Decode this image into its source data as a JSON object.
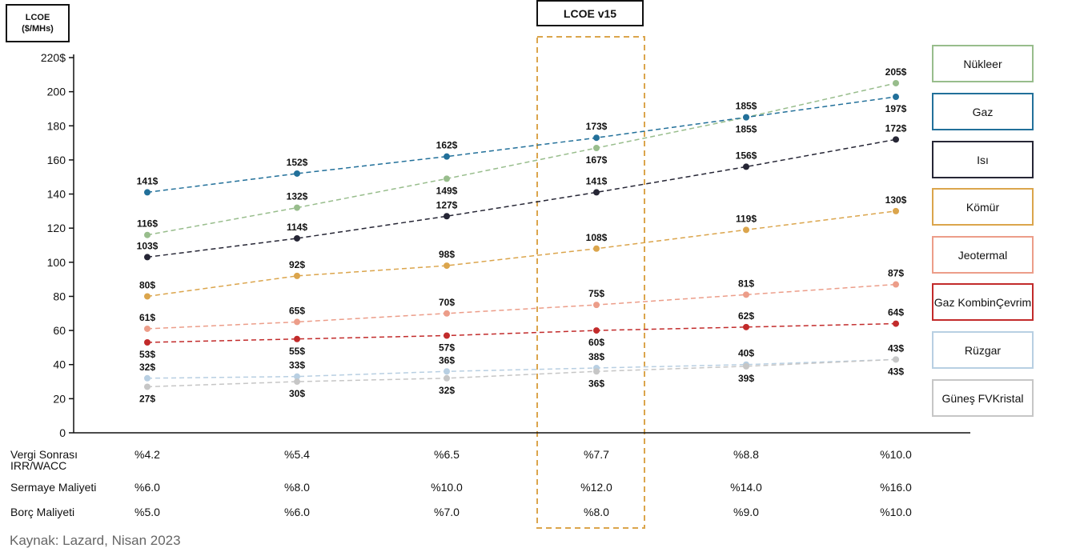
{
  "chart_data": {
    "type": "line",
    "ylabel_line1": "LCOE",
    "ylabel_line2": "($/MHs)",
    "highlight_label": "LCOE v15",
    "highlight_index": 3,
    "ylim": [
      0,
      220
    ],
    "yticks": [
      {
        "value": 0,
        "label": "0"
      },
      {
        "value": 20,
        "label": "20"
      },
      {
        "value": 40,
        "label": "40"
      },
      {
        "value": 60,
        "label": "60"
      },
      {
        "value": 80,
        "label": "80"
      },
      {
        "value": 100,
        "label": "100"
      },
      {
        "value": 120,
        "label": "120"
      },
      {
        "value": 140,
        "label": "140"
      },
      {
        "value": 160,
        "label": "160"
      },
      {
        "value": 180,
        "label": "180"
      },
      {
        "value": 200,
        "label": "200"
      },
      {
        "value": 220,
        "label": "220$"
      }
    ],
    "series": [
      {
        "name": "Nükleer",
        "color": "#98bd8c",
        "values": [
          116,
          132,
          149,
          167,
          185,
          205
        ],
        "labels": [
          "116$",
          "132$",
          "149$",
          "167$",
          "185$",
          "205$"
        ],
        "label_pos": [
          "above",
          "above",
          "below",
          "below",
          "below",
          "above"
        ]
      },
      {
        "name": "Gaz",
        "color": "#22709a",
        "values": [
          141,
          152,
          162,
          173,
          185,
          197
        ],
        "labels": [
          "141$",
          "152$",
          "162$",
          "173$",
          "185$",
          "197$"
        ],
        "label_pos": [
          "above",
          "above",
          "above",
          "above",
          "above",
          "below"
        ]
      },
      {
        "name": "Isı",
        "color": "#262635",
        "values": [
          103,
          114,
          127,
          141,
          156,
          172
        ],
        "labels": [
          "103$",
          "114$",
          "127$",
          "141$",
          "156$",
          "172$"
        ],
        "label_pos": [
          "above",
          "above",
          "above",
          "above",
          "above",
          "above"
        ]
      },
      {
        "name": "Kömür",
        "color": "#dba54c",
        "values": [
          80,
          92,
          98,
          108,
          119,
          130
        ],
        "labels": [
          "80$",
          "92$",
          "98$",
          "108$",
          "119$",
          "130$"
        ],
        "label_pos": [
          "above",
          "above",
          "above",
          "above",
          "above",
          "above"
        ]
      },
      {
        "name": "Jeotermal",
        "color": "#ec9d89",
        "values": [
          61,
          65,
          70,
          75,
          81,
          87
        ],
        "labels": [
          "61$",
          "65$",
          "70$",
          "75$",
          "81$",
          "87$"
        ],
        "label_pos": [
          "above",
          "above",
          "above",
          "above",
          "above",
          "above"
        ]
      },
      {
        "name": "Gaz Kombin Çevrim",
        "name_lines": [
          "Gaz Kombin",
          "Çevrim"
        ],
        "color": "#c22b2b",
        "values": [
          53,
          55,
          57,
          60,
          62,
          64
        ],
        "labels": [
          "53$",
          "55$",
          "57$",
          "60$",
          "62$",
          "64$"
        ],
        "label_pos": [
          "below",
          "below",
          "below",
          "below",
          "above",
          "above"
        ]
      },
      {
        "name": "Rüzgar",
        "color": "#b8cfe2",
        "values": [
          32,
          33,
          36,
          38,
          40,
          43
        ],
        "labels": [
          "32$",
          "33$",
          "36$",
          "38$",
          "40$",
          "43$"
        ],
        "label_pos": [
          "above",
          "above",
          "above",
          "above",
          "above",
          "above"
        ]
      },
      {
        "name": "Güneş FV Kristal",
        "name_lines": [
          "Güneş FV",
          "Kristal"
        ],
        "color": "#c6c6c6",
        "values": [
          27,
          30,
          32,
          36,
          39,
          43
        ],
        "labels": [
          "27$",
          "30$",
          "32$",
          "36$",
          "39$",
          "43$"
        ],
        "label_pos": [
          "below",
          "below",
          "below",
          "below",
          "below",
          "below"
        ]
      }
    ],
    "rows": [
      {
        "label_lines": [
          "Vergi Sonrası",
          "IRR/WACC"
        ],
        "values": [
          "%4.2",
          "%5.4",
          "%6.5",
          "%7.7",
          "%8.8",
          "%10.0"
        ]
      },
      {
        "label_lines": [
          "Sermaye Maliyeti"
        ],
        "values": [
          "%6.0",
          "%8.0",
          "%10.0",
          "%12.0",
          "%14.0",
          "%16.0"
        ]
      },
      {
        "label_lines": [
          "Borç Maliyeti"
        ],
        "values": [
          "%5.0",
          "%6.0",
          "%7.0",
          "%8.0",
          "%9.0",
          "%10.0"
        ]
      }
    ]
  },
  "source": "Kaynak: Lazard, Nisan 2023"
}
